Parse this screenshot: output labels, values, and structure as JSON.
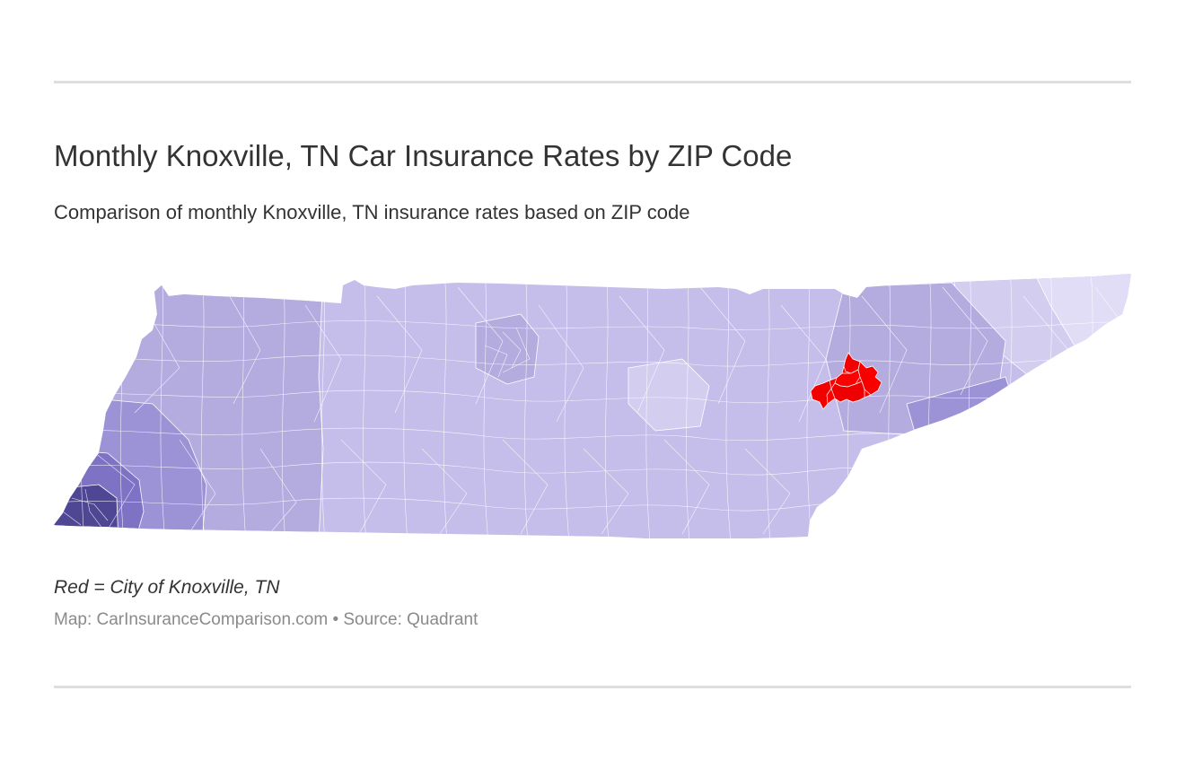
{
  "header": {
    "title": "Monthly Knoxville, TN Car Insurance Rates by ZIP Code",
    "subtitle": "Comparison of monthly Knoxville, TN insurance rates based on ZIP code"
  },
  "map": {
    "region": "Tennessee",
    "shading": "choropleth by ZIP code (monthly rate)",
    "colors": {
      "highest": "#4f4793",
      "high": "#7d72c4",
      "upper_mid": "#9c93d6",
      "mid": "#b4acdf",
      "lower_mid": "#c5bdea",
      "low": "#d3cdf0",
      "lowest": "#e2ddf7",
      "highlight": "#ff0000",
      "boundary": "#ffffff"
    }
  },
  "legend": {
    "note": "Red = City of Knoxville, TN"
  },
  "footer": {
    "credit": "Map: CarInsuranceComparison.com • Source: Quadrant"
  }
}
